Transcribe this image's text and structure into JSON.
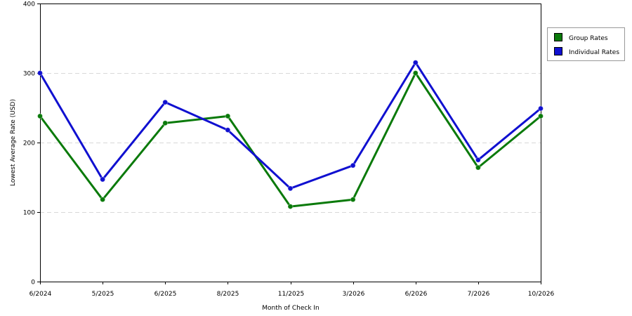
{
  "chart_data": {
    "type": "line",
    "categories": [
      "6/2024",
      "5/2025",
      "6/2025",
      "8/2025",
      "11/2025",
      "3/2026",
      "6/2026",
      "7/2026",
      "10/2026"
    ],
    "series": [
      {
        "name": "Group Rates",
        "color": "#0a7a0a",
        "values": [
          238,
          118,
          228,
          238,
          108,
          118,
          300,
          164,
          238
        ]
      },
      {
        "name": "Individual Rates",
        "color": "#1010d0",
        "values": [
          300,
          147,
          258,
          218,
          134,
          167,
          315,
          175,
          249
        ]
      }
    ],
    "xlabel": "Month of Check In",
    "ylabel": "Lowest Average Rate (USD)",
    "ylim": [
      0,
      400
    ],
    "yticks": [
      0,
      100,
      200,
      300,
      400
    ],
    "grid": true,
    "legend_position": "top-right"
  }
}
